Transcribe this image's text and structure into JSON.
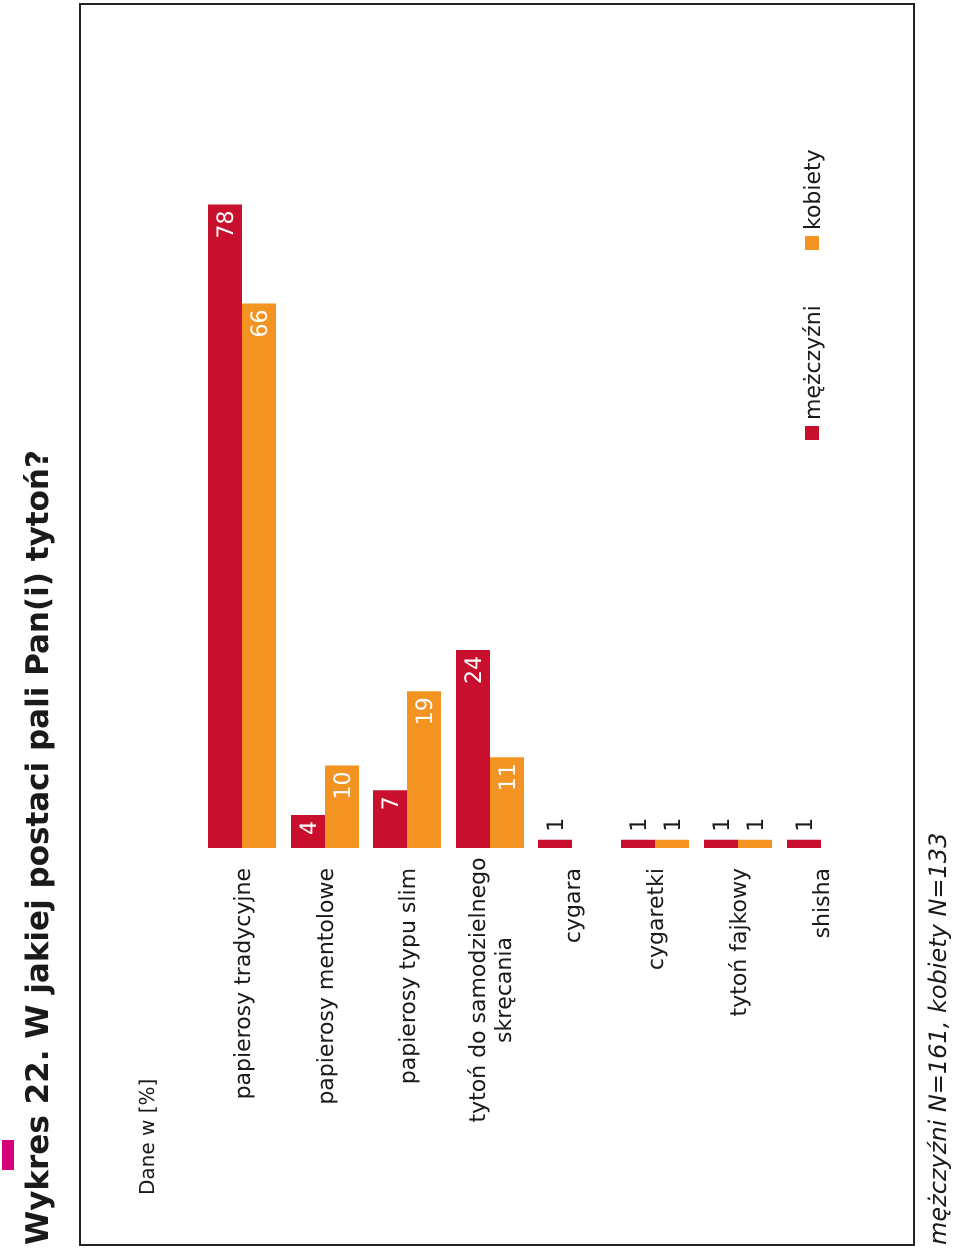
{
  "chart_data": {
    "type": "bar",
    "title": "Wykres 22. W jakiej postaci pali Pan(i) tytoń?",
    "unit_label": "Dane w [%]",
    "categories": [
      [
        "papierosy tradycyjne"
      ],
      [
        "papierosy mentolowe"
      ],
      [
        "papierosy typu slim"
      ],
      [
        "tytoń do samodzielnego",
        "skręcania"
      ],
      [
        "cygara"
      ],
      [
        "cygaretki"
      ],
      [
        "tytoń fajkowy"
      ],
      [
        "shisha"
      ]
    ],
    "series": [
      {
        "name": "mężczyźni",
        "color": "#c8102e",
        "values": [
          78,
          4,
          7,
          24,
          1,
          1,
          1,
          1
        ]
      },
      {
        "name": "kobiety",
        "color": "#f39322",
        "values": [
          66,
          10,
          19,
          11,
          null,
          1,
          1,
          null
        ]
      }
    ],
    "footnote": "mężczyźni N=161,  kobiety N=133",
    "legend_position": "right",
    "grid": false
  },
  "colors": {
    "accent_tab": "#d6007a",
    "frame": "#222222"
  }
}
